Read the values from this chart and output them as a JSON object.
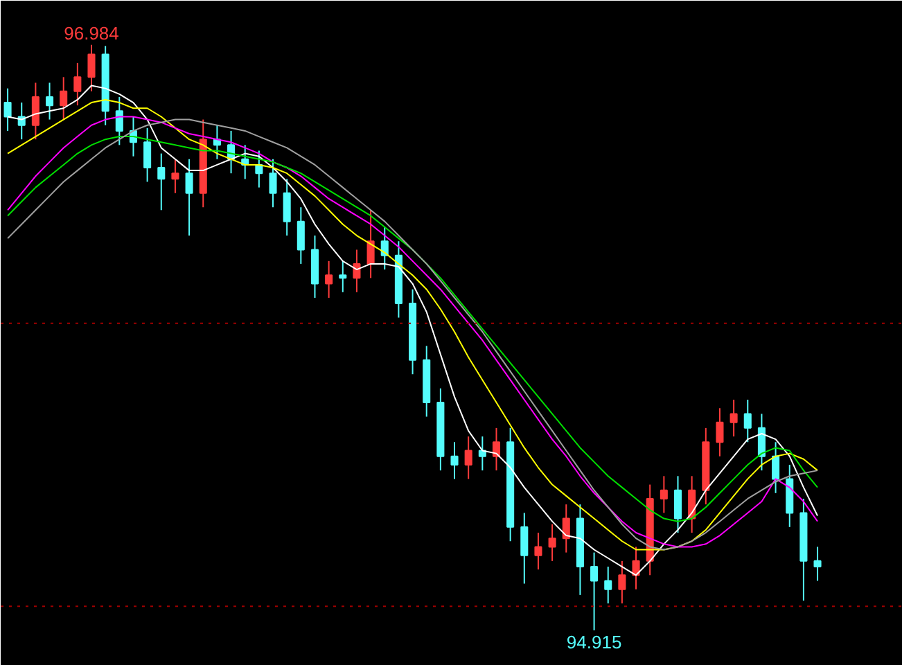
{
  "chart_data": {
    "type": "candlestick",
    "categories": [
      null,
      null,
      null,
      null,
      null,
      null,
      null,
      null,
      null,
      null,
      null,
      null,
      null,
      null,
      null,
      null,
      null,
      null,
      null,
      null,
      null,
      null,
      null,
      null,
      null,
      null,
      null,
      null,
      null,
      null,
      null,
      null,
      null,
      null,
      null,
      null,
      null,
      null,
      null,
      null,
      null,
      null,
      null,
      null,
      null,
      null,
      null,
      null,
      null,
      null,
      null,
      null,
      null,
      null,
      null,
      null,
      null,
      null,
      null
    ],
    "ohlc": [
      [
        96.78,
        96.83,
        96.68,
        96.73
      ],
      [
        96.73,
        96.78,
        96.65,
        96.7
      ],
      [
        96.7,
        96.85,
        96.65,
        96.8
      ],
      [
        96.8,
        96.85,
        96.72,
        96.77
      ],
      [
        96.77,
        96.87,
        96.72,
        96.82
      ],
      [
        96.82,
        96.92,
        96.77,
        96.87
      ],
      [
        96.87,
        96.984,
        96.82,
        96.95
      ],
      [
        96.95,
        96.98,
        96.7,
        96.75
      ],
      [
        96.75,
        96.8,
        96.63,
        96.68
      ],
      [
        96.68,
        96.73,
        96.59,
        96.64
      ],
      [
        96.64,
        96.69,
        96.5,
        96.55
      ],
      [
        96.55,
        96.6,
        96.4,
        96.51
      ],
      [
        96.51,
        96.58,
        96.46,
        96.53
      ],
      [
        96.53,
        96.58,
        96.31,
        96.46
      ],
      [
        96.46,
        96.72,
        96.41,
        96.65
      ],
      [
        96.65,
        96.7,
        96.58,
        96.63
      ],
      [
        96.63,
        96.68,
        96.53,
        96.58
      ],
      [
        96.58,
        96.63,
        96.51,
        96.56
      ],
      [
        96.56,
        96.61,
        96.48,
        96.53
      ],
      [
        96.53,
        96.58,
        96.41,
        96.46
      ],
      [
        96.46,
        96.51,
        96.31,
        96.36
      ],
      [
        96.36,
        96.41,
        96.21,
        96.26
      ],
      [
        96.26,
        96.31,
        96.09,
        96.14
      ],
      [
        96.14,
        96.22,
        96.09,
        96.17
      ],
      [
        96.17,
        96.22,
        96.11,
        96.16
      ],
      [
        96.16,
        96.26,
        96.11,
        96.21
      ],
      [
        96.21,
        96.4,
        96.16,
        96.29
      ],
      [
        96.29,
        96.34,
        96.19,
        96.24
      ],
      [
        96.24,
        96.29,
        96.02,
        96.07
      ],
      [
        96.07,
        96.12,
        95.82,
        95.87
      ],
      [
        95.87,
        95.92,
        95.67,
        95.72
      ],
      [
        95.72,
        95.77,
        95.48,
        95.53
      ],
      [
        95.53,
        95.58,
        95.45,
        95.5
      ],
      [
        95.5,
        95.6,
        95.45,
        95.55
      ],
      [
        95.55,
        95.6,
        95.48,
        95.53
      ],
      [
        95.53,
        95.63,
        95.48,
        95.58
      ],
      [
        95.58,
        95.63,
        95.23,
        95.28
      ],
      [
        95.28,
        95.33,
        95.08,
        95.18
      ],
      [
        95.18,
        95.26,
        95.13,
        95.21
      ],
      [
        95.21,
        95.29,
        95.16,
        95.24
      ],
      [
        95.24,
        95.36,
        95.19,
        95.31
      ],
      [
        95.31,
        95.36,
        95.04,
        95.14
      ],
      [
        95.14,
        95.19,
        94.915,
        95.09
      ],
      [
        95.09,
        95.14,
        95.01,
        95.06
      ],
      [
        95.06,
        95.16,
        95.01,
        95.11
      ],
      [
        95.11,
        95.21,
        95.06,
        95.16
      ],
      [
        95.16,
        95.43,
        95.11,
        95.38
      ],
      [
        95.38,
        95.46,
        95.33,
        95.41
      ],
      [
        95.41,
        95.46,
        95.26,
        95.31
      ],
      [
        95.31,
        95.46,
        95.26,
        95.41
      ],
      [
        95.41,
        95.63,
        95.36,
        95.58
      ],
      [
        95.58,
        95.7,
        95.53,
        95.65
      ],
      [
        95.65,
        95.73,
        95.6,
        95.68
      ],
      [
        95.68,
        95.73,
        95.58,
        95.63
      ],
      [
        95.63,
        95.68,
        95.48,
        95.53
      ],
      [
        95.53,
        95.58,
        95.4,
        95.45
      ],
      [
        95.45,
        95.5,
        95.28,
        95.33
      ],
      [
        95.33,
        95.38,
        95.02,
        95.16
      ],
      [
        95.16,
        95.21,
        95.09,
        95.14
      ]
    ],
    "series": [
      {
        "type": "line",
        "color": "#ffffff",
        "values": [
          96.73,
          96.72,
          96.74,
          96.75,
          96.76,
          96.79,
          96.84,
          96.83,
          96.81,
          96.78,
          96.72,
          96.62,
          96.58,
          96.54,
          96.54,
          96.56,
          96.58,
          96.6,
          96.59,
          96.55,
          96.5,
          96.44,
          96.35,
          96.28,
          96.22,
          96.19,
          96.21,
          96.21,
          96.2,
          96.14,
          96.04,
          95.89,
          95.74,
          95.62,
          95.55,
          95.54,
          95.49,
          95.42,
          95.36,
          95.3,
          95.25,
          95.24,
          95.2,
          95.17,
          95.14,
          95.11,
          95.16,
          95.22,
          95.27,
          95.33,
          95.41,
          95.47,
          95.53,
          95.59,
          95.61,
          95.59,
          95.53,
          95.42,
          95.32
        ]
      },
      {
        "type": "line",
        "color": "#ffff00",
        "values": [
          96.6,
          96.63,
          96.66,
          96.69,
          96.72,
          96.75,
          96.78,
          96.79,
          96.78,
          96.76,
          96.76,
          96.73,
          96.69,
          96.65,
          96.63,
          96.6,
          96.58,
          96.56,
          96.56,
          96.55,
          96.53,
          96.49,
          96.45,
          96.4,
          96.35,
          96.31,
          96.28,
          96.25,
          96.21,
          96.17,
          96.12,
          96.05,
          95.97,
          95.88,
          95.8,
          95.72,
          95.64,
          95.56,
          95.49,
          95.43,
          95.39,
          95.35,
          95.31,
          95.27,
          95.23,
          95.2,
          95.2,
          95.2,
          95.21,
          95.23,
          95.27,
          95.33,
          95.39,
          95.45,
          95.5,
          95.53,
          95.54,
          95.52,
          95.48
        ]
      },
      {
        "type": "line",
        "color": "#ff00ff",
        "values": [
          96.4,
          96.46,
          96.52,
          96.57,
          96.62,
          96.66,
          96.7,
          96.72,
          96.73,
          96.73,
          96.72,
          96.71,
          96.69,
          96.67,
          96.66,
          96.65,
          96.64,
          96.62,
          96.6,
          96.57,
          96.55,
          96.52,
          96.48,
          96.44,
          96.41,
          96.38,
          96.35,
          96.31,
          96.27,
          96.22,
          96.17,
          96.12,
          96.06,
          96.0,
          95.94,
          95.87,
          95.8,
          95.73,
          95.66,
          95.59,
          95.53,
          95.46,
          95.4,
          95.35,
          95.3,
          95.26,
          95.24,
          95.22,
          95.21,
          95.21,
          95.22,
          95.25,
          95.29,
          95.33,
          95.37,
          95.45,
          95.42,
          95.37,
          95.3
        ]
      },
      {
        "type": "line",
        "color": "#00e000",
        "values": [
          96.38,
          96.43,
          96.48,
          96.52,
          96.56,
          96.6,
          96.63,
          96.65,
          96.66,
          96.66,
          96.65,
          96.64,
          96.63,
          96.62,
          96.61,
          96.61,
          96.6,
          96.59,
          96.58,
          96.57,
          96.55,
          96.53,
          96.5,
          96.47,
          96.44,
          96.41,
          96.38,
          96.34,
          96.3,
          96.26,
          96.21,
          96.16,
          96.1,
          96.04,
          95.98,
          95.92,
          95.86,
          95.8,
          95.74,
          95.68,
          95.62,
          95.56,
          95.51,
          95.46,
          95.42,
          95.38,
          95.34,
          95.31,
          95.3,
          95.31,
          95.35,
          95.4,
          95.45,
          95.5,
          95.54,
          95.56,
          95.55,
          95.48,
          95.42
        ]
      },
      {
        "type": "line",
        "color": "#a0a0a0",
        "values": [
          96.3,
          96.35,
          96.4,
          96.45,
          96.5,
          96.54,
          96.58,
          96.62,
          96.65,
          96.68,
          96.7,
          96.71,
          96.72,
          96.72,
          96.71,
          96.7,
          96.69,
          96.68,
          96.66,
          96.64,
          96.62,
          96.59,
          96.56,
          96.52,
          96.48,
          96.44,
          96.4,
          96.36,
          96.31,
          96.26,
          96.21,
          96.15,
          96.09,
          96.03,
          95.97,
          95.9,
          95.83,
          95.76,
          95.69,
          95.62,
          95.55,
          95.48,
          95.41,
          95.35,
          95.29,
          95.24,
          95.21,
          95.2,
          95.21,
          95.23,
          95.26,
          95.3,
          95.34,
          95.38,
          95.41,
          95.44,
          95.46,
          95.47,
          95.48
        ]
      }
    ],
    "ylim": [
      94.79,
      97.14
    ],
    "ref_lines": [
      {
        "axis": "y",
        "value": 96.0,
        "color": "#a00000",
        "line_style": "dotted"
      },
      {
        "axis": "y",
        "value": 95.0,
        "color": "#a00000",
        "line_style": "dotted"
      }
    ],
    "annotations": [
      {
        "text": "96.984",
        "y": 96.984
      },
      {
        "text": "94.915",
        "y": 94.915
      }
    ],
    "tick_labels": false,
    "grid": false
  }
}
